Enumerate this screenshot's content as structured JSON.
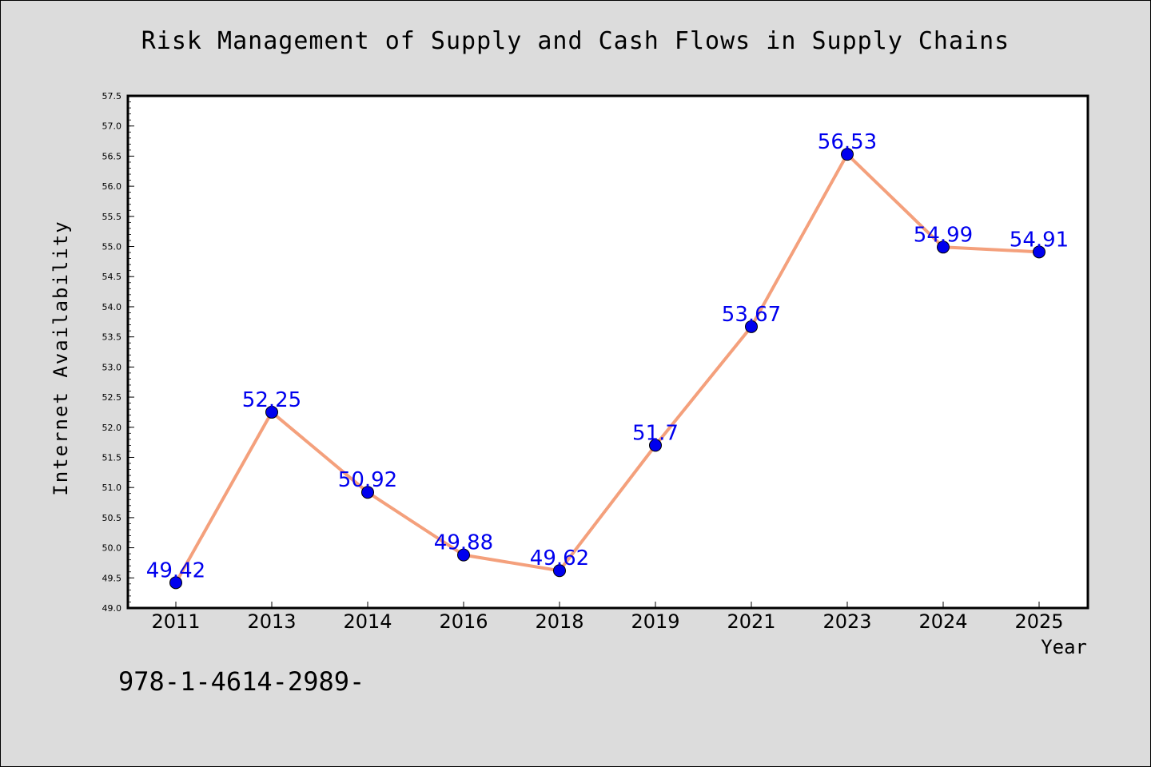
{
  "chart_data": {
    "type": "line",
    "title": "Risk Management of Supply and Cash Flows in Supply Chains",
    "xlabel": "Year",
    "ylabel": "Internet Availability",
    "categories": [
      "2011",
      "2013",
      "2014",
      "2016",
      "2018",
      "2019",
      "2021",
      "2023",
      "2024",
      "2025"
    ],
    "series": [
      {
        "values": [
          49.42,
          52.25,
          50.92,
          49.88,
          49.62,
          51.7,
          53.67,
          56.53,
          54.99,
          54.91
        ]
      }
    ],
    "data_labels": [
      "49.42",
      "52.25",
      "50.92",
      "49.88",
      "49.62",
      "51.7",
      "53.67",
      "56.53",
      "54.99",
      "54.91"
    ],
    "ylim": [
      49.0,
      57.5
    ],
    "yticks": [
      "49.0",
      "49.5",
      "50.0",
      "50.5",
      "51.0",
      "51.5",
      "52.0",
      "52.5",
      "53.0",
      "53.5",
      "54.0",
      "54.5",
      "55.0",
      "55.5",
      "56.0",
      "56.5",
      "57.0",
      "57.5"
    ],
    "grid": false,
    "colors": {
      "line": "#f4a07c",
      "marker": "#0000ee",
      "label": "#0000ee",
      "plot_bg": "#ffffff",
      "figure_bg": "#dcdcdc"
    }
  },
  "footnote": "978-1-4614-2989-"
}
